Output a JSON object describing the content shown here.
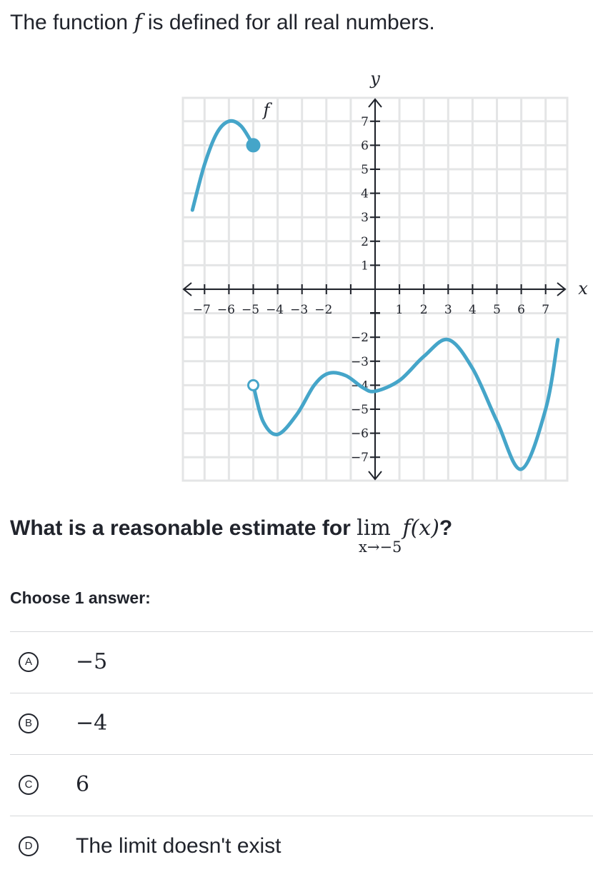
{
  "intro": {
    "before": "The function ",
    "var": "f",
    "after": " is defined for all real numbers."
  },
  "chart_data": {
    "type": "line",
    "title": "",
    "xlabel": "x",
    "ylabel": "y",
    "curve_label": "f",
    "xlim": [
      -7.5,
      7.5
    ],
    "ylim": [
      -7.5,
      7.5
    ],
    "x_ticks": [
      "−7",
      "−6",
      "−5",
      "−4",
      "−3",
      "−2",
      "1",
      "2",
      "3",
      "4",
      "5",
      "6",
      "7"
    ],
    "y_ticks": [
      "7",
      "6",
      "5",
      "4",
      "3",
      "2",
      "1",
      "−2",
      "−3",
      "−4",
      "−5",
      "−6",
      "−7"
    ],
    "grid": true,
    "series": [
      {
        "points": [
          [
            -7.5,
            3.3
          ],
          [
            -7,
            5.2
          ],
          [
            -6.5,
            6.5
          ],
          [
            -6,
            7
          ],
          [
            -5.5,
            6.8
          ],
          [
            -5,
            6
          ]
        ],
        "start": "continues",
        "end": "closed",
        "color": "#45a5c9"
      },
      {
        "points": [
          [
            -5,
            -4
          ],
          [
            -4.6,
            -5.5
          ],
          [
            -4,
            -6.05
          ],
          [
            -3.2,
            -5.2
          ],
          [
            -2.5,
            -4
          ],
          [
            -1.9,
            -3.5
          ],
          [
            -1.2,
            -3.6
          ],
          [
            -0.5,
            -4.1
          ],
          [
            0,
            -4.25
          ],
          [
            1,
            -3.8
          ],
          [
            2,
            -2.8
          ],
          [
            3,
            -2.1
          ],
          [
            4,
            -3.3
          ],
          [
            5,
            -5.5
          ],
          [
            6,
            -7.5
          ],
          [
            7,
            -5
          ],
          [
            7.5,
            -2.1
          ]
        ],
        "start": "open",
        "end": "continues",
        "color": "#45a5c9"
      }
    ]
  },
  "question": {
    "before": "What is a reasonable estimate for ",
    "lim": "lim",
    "lim_subscript": "x→−5",
    "expr": "f(x)",
    "after": "?"
  },
  "choose_label": "Choose 1 answer:",
  "choices": [
    {
      "letter": "A",
      "text": "−5"
    },
    {
      "letter": "B",
      "text": "−4"
    },
    {
      "letter": "C",
      "text": "6"
    },
    {
      "letter": "D",
      "text": "The limit doesn't exist"
    }
  ]
}
